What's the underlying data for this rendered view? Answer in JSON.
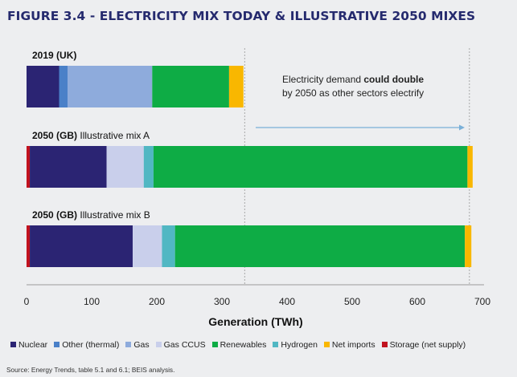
{
  "figure_title": "FIGURE 3.4 - ELECTRICITY MIX TODAY & ILLUSTRATIVE 2050 MIXES",
  "source": "Source: Energy Trends, table 5.1 and 6.1; BEIS analysis.",
  "annotation": {
    "line1_prefix": "Electricity demand ",
    "line1_bold": "could double",
    "line2": "by 2050 as other sectors electrify"
  },
  "chart_data": {
    "type": "bar",
    "orientation": "horizontal",
    "stacked": true,
    "xlabel": "Generation (TWh)",
    "xlim": [
      0,
      700
    ],
    "xticks": [
      0,
      100,
      200,
      300,
      400,
      500,
      600,
      700
    ],
    "reference_lines": [
      335,
      680
    ],
    "categories": [
      {
        "bold": "2019 (UK)",
        "rest": ""
      },
      {
        "bold": "2050 (GB)",
        "rest": " Illustrative mix A"
      },
      {
        "bold": "2050 (GB)",
        "rest": " Illustrative mix B"
      }
    ],
    "series": [
      {
        "name": "Storage (net supply)",
        "color": "#c1121f",
        "values": [
          0,
          5,
          5
        ]
      },
      {
        "name": "Nuclear",
        "color": "#2b2473",
        "values": [
          50,
          118,
          158
        ]
      },
      {
        "name": "Other (thermal)",
        "color": "#4a80c8",
        "values": [
          13,
          0,
          0
        ]
      },
      {
        "name": "Gas",
        "color": "#8eabdc",
        "values": [
          130,
          0,
          0
        ]
      },
      {
        "name": "Gas CCUS",
        "color": "#c9cfeb",
        "values": [
          0,
          57,
          45
        ]
      },
      {
        "name": "Hydrogen",
        "color": "#51b7c3",
        "values": [
          0,
          15,
          20
        ]
      },
      {
        "name": "Renewables",
        "color": "#0eac45",
        "values": [
          118,
          482,
          445
        ]
      },
      {
        "name": "Net imports",
        "color": "#f9b700",
        "values": [
          22,
          8,
          10
        ]
      }
    ],
    "legend_order": [
      "Nuclear",
      "Other (thermal)",
      "Gas",
      "Gas CCUS",
      "Renewables",
      "Hydrogen",
      "Net imports",
      "Storage (net supply)"
    ]
  }
}
